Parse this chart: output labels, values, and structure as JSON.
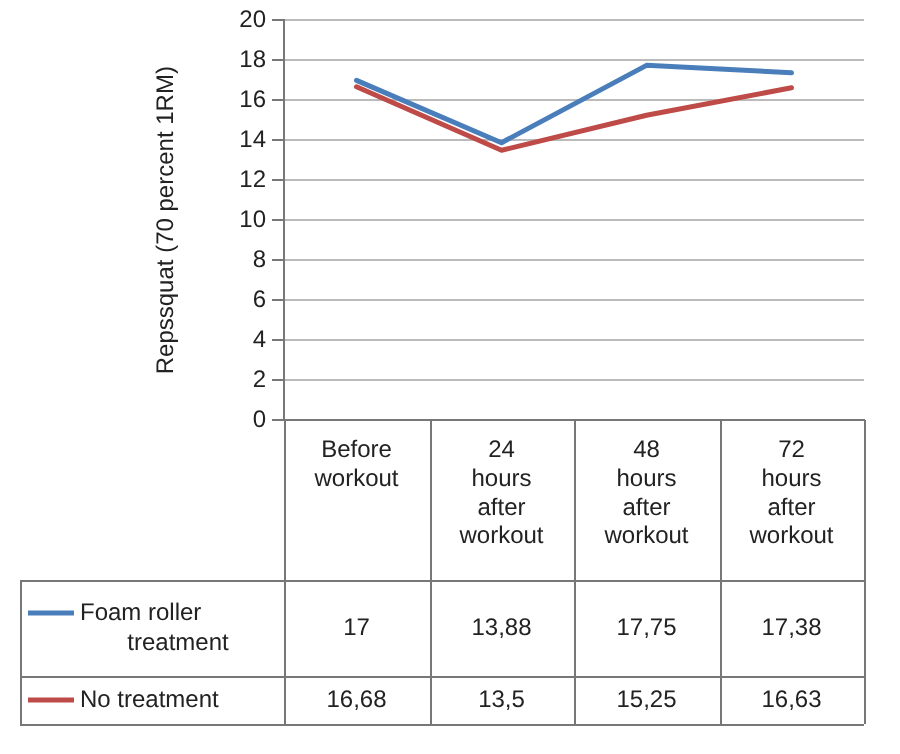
{
  "chart_data": {
    "type": "line",
    "ylabel": "Repssquat (70 percent 1RM)",
    "categories": [
      "Before workout",
      "24 hours after workout",
      "48 hours after workout",
      "72 hours after workout"
    ],
    "series": [
      {
        "name": "Foam roller treatment",
        "color": "#4a7ebb",
        "values": [
          17,
          13.88,
          17.75,
          17.38
        ],
        "value_labels": [
          "17",
          "13,88",
          "17,75",
          "17,38"
        ]
      },
      {
        "name": "No treatment",
        "color": "#be4b48",
        "values": [
          16.68,
          13.5,
          15.25,
          16.63
        ],
        "value_labels": [
          "16,68",
          "13,5",
          "15,25",
          "16,63"
        ]
      }
    ],
    "ylim": [
      0,
      20
    ],
    "yticks": [
      0,
      2,
      4,
      6,
      8,
      10,
      12,
      14,
      16,
      18,
      20
    ],
    "grid": "y",
    "legend": "bottom",
    "marker": "none",
    "line_style": "solid"
  }
}
